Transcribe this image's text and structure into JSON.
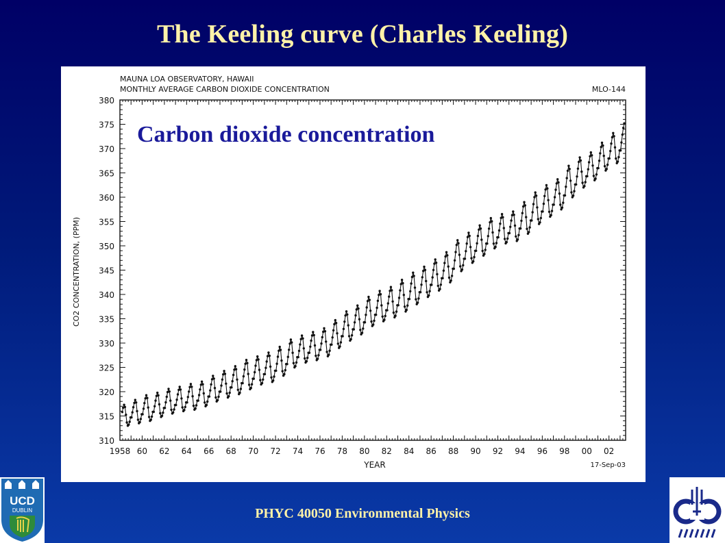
{
  "slide": {
    "title": "The Keeling curve (Charles Keeling)",
    "footer": "PHYC 40050 Environmental Physics",
    "logo_left_text_1": "UCD",
    "logo_left_text_2": "DUBLIN"
  },
  "colors": {
    "slide_title": "#fff2a8",
    "overlay_label": "#1a1a9a",
    "chart_ink": "#111111"
  },
  "chart_data": {
    "type": "line",
    "title_line_1": "MAUNA LOA OBSERVATORY, HAWAII",
    "title_line_2": "MONTHLY AVERAGE CARBON DIOXIDE CONCENTRATION",
    "station_code": "MLO-144",
    "date_stamp": "17-Sep-03",
    "overlay_label": "Carbon dioxide concentration",
    "xlabel": "YEAR",
    "ylabel": "CO2 CONCENTRATION, (PPM)",
    "xlim": [
      1958,
      2003.5
    ],
    "ylim": [
      310,
      380
    ],
    "xtick_values": [
      1958,
      1960,
      1962,
      1964,
      1966,
      1968,
      1970,
      1972,
      1974,
      1976,
      1978,
      1980,
      1982,
      1984,
      1986,
      1988,
      1990,
      1992,
      1994,
      1996,
      1998,
      2000,
      2002
    ],
    "xtick_labels": [
      "1958",
      "60",
      "62",
      "64",
      "66",
      "68",
      "70",
      "72",
      "74",
      "76",
      "78",
      "80",
      "82",
      "84",
      "86",
      "88",
      "90",
      "92",
      "94",
      "96",
      "98",
      "00",
      "02"
    ],
    "yticks": [
      310,
      315,
      320,
      325,
      330,
      335,
      340,
      345,
      350,
      355,
      360,
      365,
      370,
      375,
      380
    ],
    "series": [
      {
        "values_annual_peak_trough": [
          [
            1958,
            317.5,
            313.0
          ],
          [
            1959,
            318.5,
            313.5
          ],
          [
            1960,
            319.5,
            314.0
          ],
          [
            1961,
            320.0,
            314.8
          ],
          [
            1962,
            320.8,
            315.5
          ],
          [
            1963,
            321.2,
            316.0
          ],
          [
            1964,
            321.8,
            316.3
          ],
          [
            1965,
            322.3,
            317.0
          ],
          [
            1966,
            323.5,
            318.0
          ],
          [
            1967,
            324.5,
            318.8
          ],
          [
            1968,
            325.5,
            319.5
          ],
          [
            1969,
            326.8,
            320.5
          ],
          [
            1970,
            327.5,
            321.5
          ],
          [
            1971,
            328.3,
            322.0
          ],
          [
            1972,
            329.5,
            323.3
          ],
          [
            1973,
            331.0,
            325.0
          ],
          [
            1974,
            331.8,
            326.0
          ],
          [
            1975,
            332.5,
            326.5
          ],
          [
            1976,
            333.3,
            327.3
          ],
          [
            1977,
            335.0,
            329.0
          ],
          [
            1978,
            336.8,
            330.5
          ],
          [
            1979,
            338.0,
            331.8
          ],
          [
            1980,
            339.8,
            333.5
          ],
          [
            1981,
            341.0,
            334.5
          ],
          [
            1982,
            341.8,
            335.3
          ],
          [
            1983,
            343.3,
            336.5
          ],
          [
            1984,
            344.8,
            338.0
          ],
          [
            1985,
            346.0,
            339.5
          ],
          [
            1986,
            347.5,
            340.8
          ],
          [
            1987,
            349.0,
            342.5
          ],
          [
            1988,
            351.5,
            344.8
          ],
          [
            1989,
            353.0,
            346.5
          ],
          [
            1990,
            354.5,
            348.0
          ],
          [
            1991,
            356.0,
            349.5
          ],
          [
            1992,
            356.8,
            350.5
          ],
          [
            1993,
            357.3,
            351.0
          ],
          [
            1994,
            359.3,
            352.5
          ],
          [
            1995,
            361.3,
            354.5
          ],
          [
            1996,
            362.8,
            356.0
          ],
          [
            1997,
            364.0,
            357.5
          ],
          [
            1998,
            366.8,
            360.0
          ],
          [
            1999,
            368.5,
            362.0
          ],
          [
            2000,
            369.5,
            363.5
          ],
          [
            2001,
            371.5,
            365.5
          ],
          [
            2002,
            373.5,
            367.0
          ],
          [
            2003,
            375.5,
            369.5
          ]
        ],
        "seasonal_peak_month": 5,
        "seasonal_trough_month": 9
      }
    ],
    "grid": false
  }
}
